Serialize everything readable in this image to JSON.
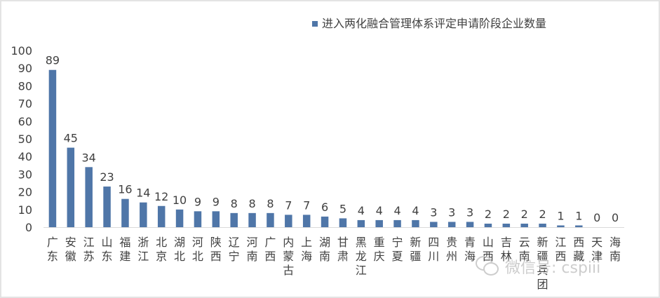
{
  "chart_data": {
    "type": "bar",
    "title": "",
    "xlabel": "",
    "ylabel": "",
    "ylim": [
      0,
      100
    ],
    "yticks": [
      0,
      10,
      20,
      30,
      40,
      50,
      60,
      70,
      80,
      90,
      100
    ],
    "grid": false,
    "legend": "top-right",
    "series": [
      {
        "name": "进入两化融合管理体系评定申请阶段企业数量",
        "color": "#4f76a8",
        "values": [
          89,
          45,
          34,
          23,
          16,
          14,
          12,
          10,
          9,
          9,
          8,
          8,
          8,
          7,
          7,
          6,
          5,
          4,
          4,
          4,
          4,
          3,
          3,
          3,
          2,
          2,
          2,
          2,
          1,
          1,
          0,
          0
        ]
      }
    ],
    "categories": [
      "广东",
      "安徽",
      "江苏",
      "山东",
      "福建",
      "浙江",
      "北京",
      "湖北",
      "河北",
      "陕西",
      "辽宁",
      "河南",
      "广西",
      "内蒙古",
      "上海",
      "湖南",
      "甘肃",
      "黑龙江",
      "重庆",
      "宁夏",
      "新疆",
      "四川",
      "贵州",
      "青海",
      "山西",
      "吉林",
      "云南",
      "新疆兵团",
      "江西",
      "西藏",
      "天津",
      "海南"
    ]
  },
  "watermark": {
    "text": "微信号: cspiii",
    "icon": "wechat-icon"
  }
}
